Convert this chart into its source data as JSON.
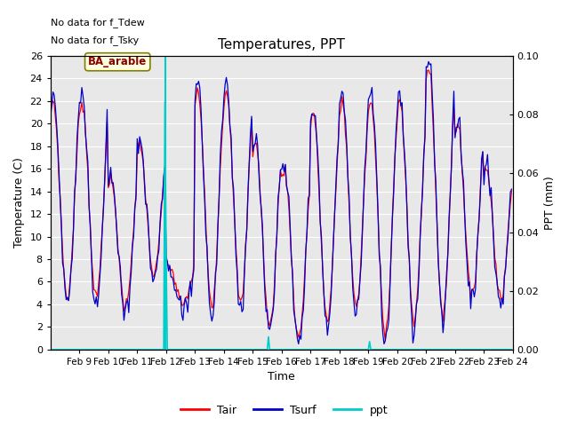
{
  "title": "Temperatures, PPT",
  "xlabel": "Time",
  "ylabel_left": "Temperature (C)",
  "ylabel_right": "PPT (mm)",
  "text_no_data_1": "No data for f_Tdew",
  "text_no_data_2": "No data for f_Tsky",
  "label_box": "BA_arable",
  "xlim_days": [
    8.0,
    24.0
  ],
  "ylim_left": [
    0,
    26
  ],
  "ylim_right": [
    0.0,
    0.1
  ],
  "xticks_vals": [
    9,
    10,
    11,
    12,
    13,
    14,
    15,
    16,
    17,
    18,
    19,
    20,
    21,
    22,
    23,
    24
  ],
  "xticks_labels": [
    "Feb 9",
    "Feb 10",
    "Feb 11",
    "Feb 12",
    "Feb 13",
    "Feb 14",
    "Feb 15",
    "Feb 16",
    "Feb 17",
    "Feb 18",
    "Feb 19",
    "Feb 20",
    "Feb 21",
    "Feb 22",
    "Feb 23",
    "Feb 24"
  ],
  "yticks_left": [
    0,
    2,
    4,
    6,
    8,
    10,
    12,
    14,
    16,
    18,
    20,
    22,
    24,
    26
  ],
  "yticks_right": [
    0.0,
    0.02,
    0.04,
    0.06,
    0.08,
    0.1
  ],
  "tair_color": "#ff0000",
  "tsurf_color": "#0000cc",
  "ppt_color": "#00cccc",
  "bg_color": "#e8e8e8",
  "vertical_line_x": 11.97,
  "legend_labels": [
    "Tair",
    "Tsurf",
    "ppt"
  ],
  "figsize": [
    6.4,
    4.8
  ],
  "dpi": 100
}
